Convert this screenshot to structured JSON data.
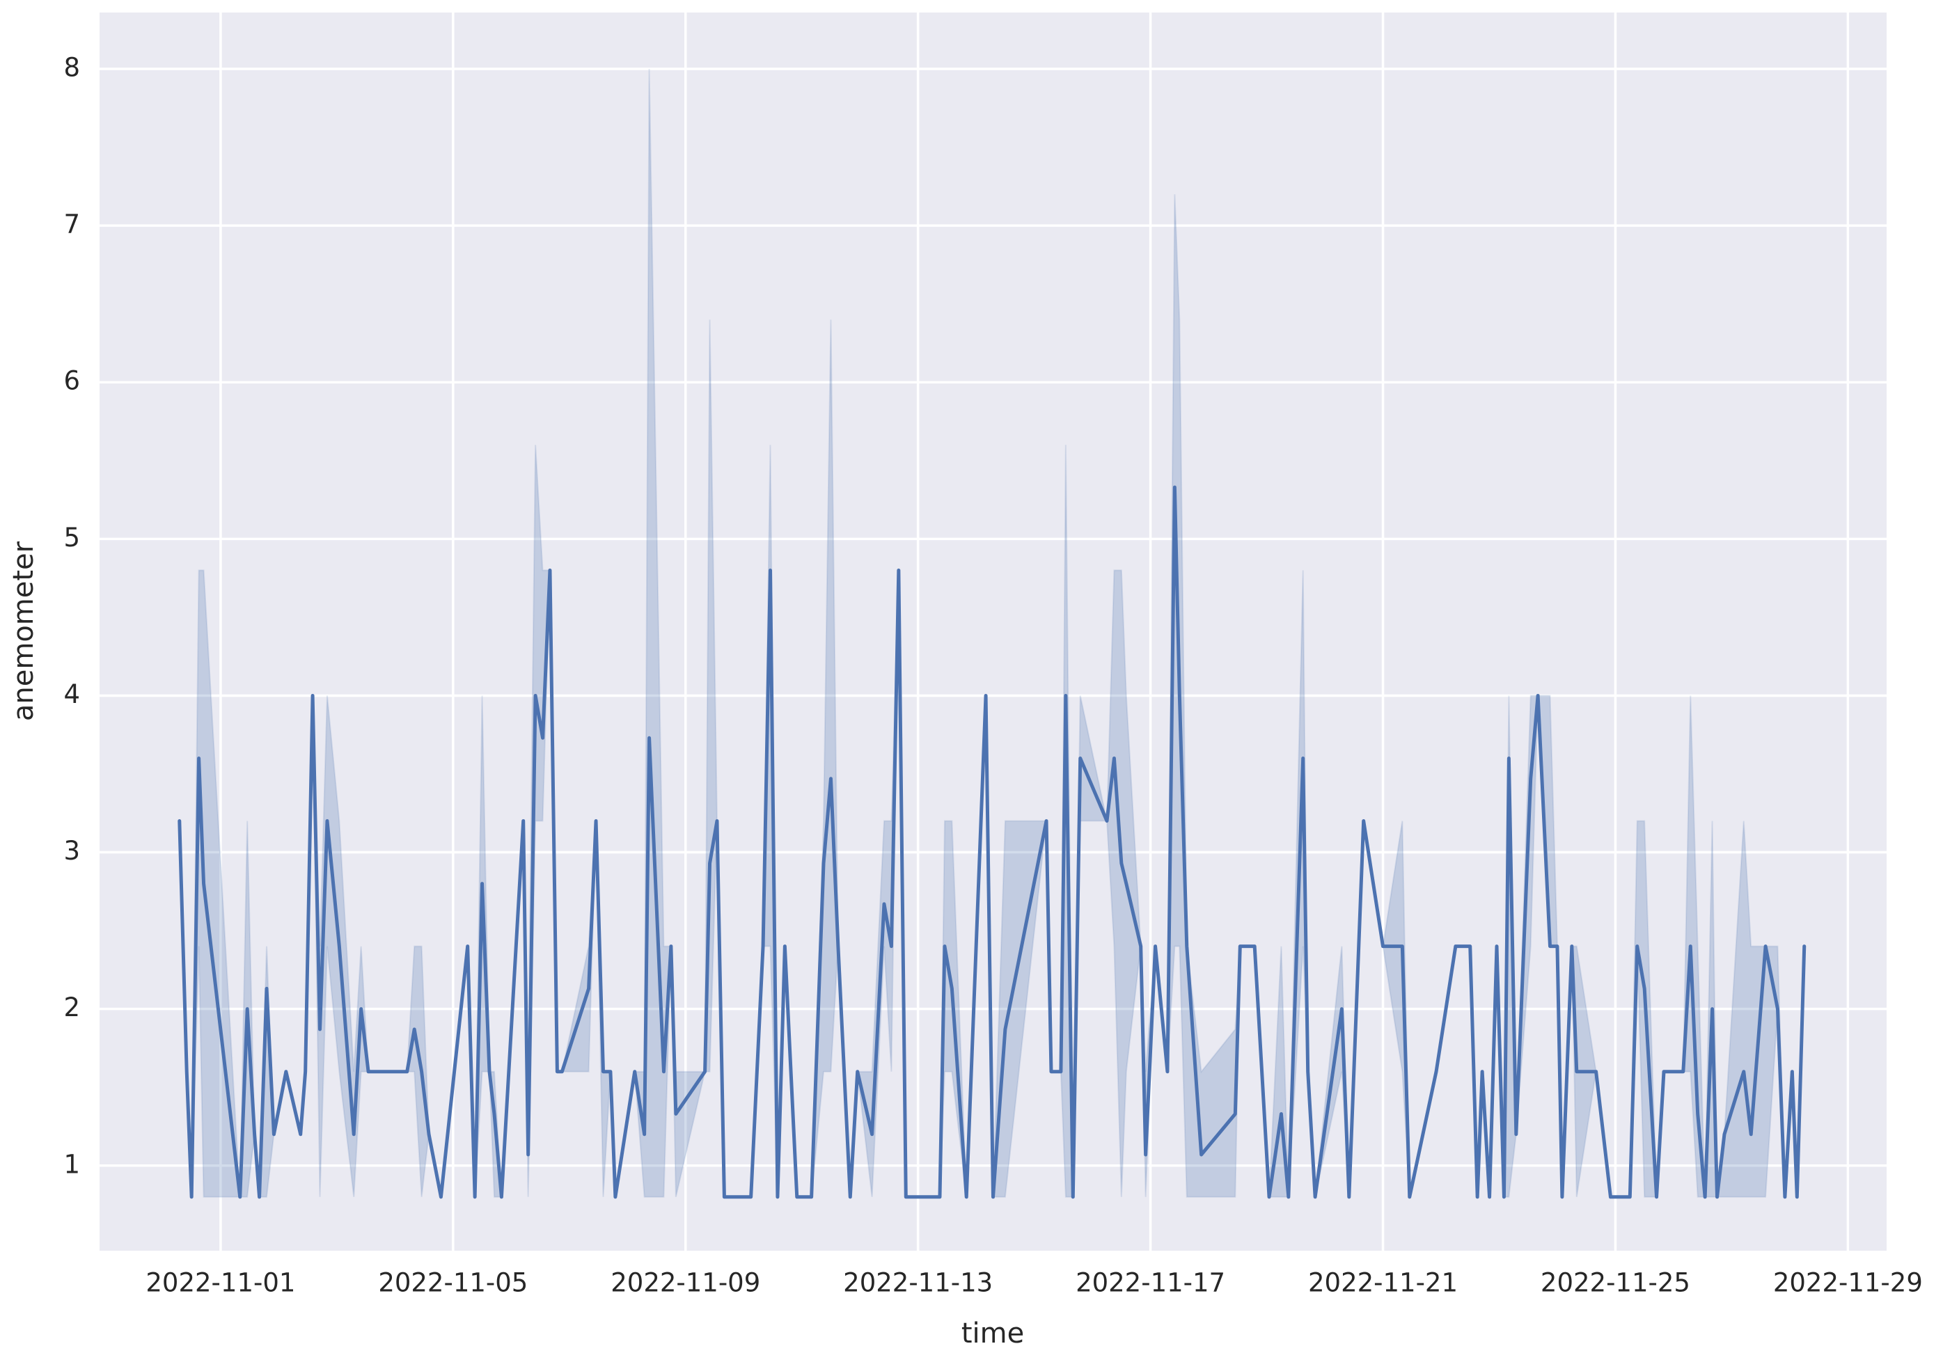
{
  "chart_data": {
    "type": "line",
    "xlabel": "time",
    "ylabel": "anemometer",
    "x": [
      "2022-10-31 07:00",
      "2022-10-31 10:00",
      "2022-10-31 12:00",
      "2022-10-31 15:00",
      "2022-10-31 17:00",
      "2022-11-01 08:00",
      "2022-11-01 11:00",
      "2022-11-01 14:00",
      "2022-11-01 16:00",
      "2022-11-01 19:00",
      "2022-11-01 22:00",
      "2022-11-02 03:00",
      "2022-11-02 09:00",
      "2022-11-02 11:00",
      "2022-11-02 14:00",
      "2022-11-02 17:00",
      "2022-11-02 20:00",
      "2022-11-03 01:00",
      "2022-11-03 07:00",
      "2022-11-03 10:00",
      "2022-11-03 13:00",
      "2022-11-04 05:00",
      "2022-11-04 08:00",
      "2022-11-04 11:00",
      "2022-11-04 14:00",
      "2022-11-04 19:00",
      "2022-11-05 06:00",
      "2022-11-05 09:00",
      "2022-11-05 12:00",
      "2022-11-05 15:00",
      "2022-11-05 17:00",
      "2022-11-05 20:00",
      "2022-11-06 05:00",
      "2022-11-06 07:00",
      "2022-11-06 10:00",
      "2022-11-06 13:00",
      "2022-11-06 16:00",
      "2022-11-06 19:00",
      "2022-11-06 21:00",
      "2022-11-07 08:00",
      "2022-11-07 11:00",
      "2022-11-07 14:00",
      "2022-11-07 17:00",
      "2022-11-07 19:00",
      "2022-11-08 03:00",
      "2022-11-08 07:00",
      "2022-11-08 09:00",
      "2022-11-08 15:00",
      "2022-11-08 18:00",
      "2022-11-08 20:00",
      "2022-11-09 08:00",
      "2022-11-09 10:00",
      "2022-11-09 13:00",
      "2022-11-09 16:00",
      "2022-11-10 03:00",
      "2022-11-10 08:00",
      "2022-11-10 11:00",
      "2022-11-10 14:00",
      "2022-11-10 17:00",
      "2022-11-10 22:00",
      "2022-11-11 04:00",
      "2022-11-11 09:00",
      "2022-11-11 12:00",
      "2022-11-11 15:00",
      "2022-11-11 20:00",
      "2022-11-11 23:00",
      "2022-11-12 05:00",
      "2022-11-12 10:00",
      "2022-11-12 13:00",
      "2022-11-12 16:00",
      "2022-11-12 19:00",
      "2022-11-13 09:00",
      "2022-11-13 11:00",
      "2022-11-13 14:00",
      "2022-11-13 20:00",
      "2022-11-14 04:00",
      "2022-11-14 07:00",
      "2022-11-14 12:00",
      "2022-11-15 05:00",
      "2022-11-15 07:00",
      "2022-11-15 11:00",
      "2022-11-15 13:00",
      "2022-11-15 16:00",
      "2022-11-15 19:00",
      "2022-11-16 06:00",
      "2022-11-16 09:00",
      "2022-11-16 12:00",
      "2022-11-16 14:00",
      "2022-11-16 20:00",
      "2022-11-16 22:00",
      "2022-11-17 02:00",
      "2022-11-17 07:00",
      "2022-11-17 10:00",
      "2022-11-17 12:00",
      "2022-11-17 15:00",
      "2022-11-17 21:00",
      "2022-11-18 11:00",
      "2022-11-18 13:00",
      "2022-11-18 19:00",
      "2022-11-19 01:00",
      "2022-11-19 06:00",
      "2022-11-19 09:00",
      "2022-11-19 15:00",
      "2022-11-19 17:00",
      "2022-11-19 20:00",
      "2022-11-20 07:00",
      "2022-11-20 10:00",
      "2022-11-20 16:00",
      "2022-11-21 00:00",
      "2022-11-21 08:00",
      "2022-11-21 11:00",
      "2022-11-21 22:00",
      "2022-11-22 06:00",
      "2022-11-22 12:00",
      "2022-11-22 15:00",
      "2022-11-22 17:00",
      "2022-11-22 20:00",
      "2022-11-22 23:00",
      "2022-11-23 02:00",
      "2022-11-23 04:00",
      "2022-11-23 07:00",
      "2022-11-23 13:00",
      "2022-11-23 16:00",
      "2022-11-23 21:00",
      "2022-11-24 00:00",
      "2022-11-24 02:00",
      "2022-11-24 06:00",
      "2022-11-24 08:00",
      "2022-11-24 16:00",
      "2022-11-24 22:00",
      "2022-11-25 06:00",
      "2022-11-25 09:00",
      "2022-11-25 12:00",
      "2022-11-25 17:00",
      "2022-11-25 20:00",
      "2022-11-26 04:00",
      "2022-11-26 07:00",
      "2022-11-26 10:00",
      "2022-11-26 13:00",
      "2022-11-26 16:00",
      "2022-11-26 18:00",
      "2022-11-26 21:00",
      "2022-11-27 05:00",
      "2022-11-27 08:00",
      "2022-11-27 14:00",
      "2022-11-27 19:00",
      "2022-11-27 22:00",
      "2022-11-28 01:00",
      "2022-11-28 03:00",
      "2022-11-28 06:00"
    ],
    "series": [
      {
        "color": "#4c72b0",
        "values": [
          3.2,
          1.6,
          0.8,
          3.6,
          2.8,
          0.8,
          2.0,
          1.2,
          0.8,
          2.13,
          1.2,
          1.6,
          1.2,
          1.6,
          4.0,
          1.87,
          3.2,
          2.4,
          1.2,
          2.0,
          1.6,
          1.6,
          1.87,
          1.6,
          1.2,
          0.8,
          2.4,
          0.8,
          2.8,
          1.6,
          1.33,
          0.8,
          3.2,
          1.07,
          4.0,
          3.73,
          4.8,
          1.6,
          1.6,
          2.13,
          3.2,
          1.6,
          1.6,
          0.8,
          1.6,
          1.2,
          3.73,
          1.6,
          2.4,
          1.33,
          1.6,
          2.93,
          3.2,
          0.8,
          0.8,
          2.4,
          4.8,
          0.8,
          2.4,
          0.8,
          0.8,
          2.93,
          3.47,
          2.4,
          0.8,
          1.6,
          1.2,
          2.67,
          2.4,
          4.8,
          0.8,
          0.8,
          2.4,
          2.13,
          0.8,
          4.0,
          0.8,
          1.87,
          3.2,
          1.6,
          1.6,
          4.0,
          0.8,
          3.6,
          3.2,
          3.6,
          2.93,
          2.8,
          2.4,
          1.07,
          2.4,
          1.6,
          5.33,
          4.0,
          2.4,
          1.07,
          1.33,
          2.4,
          2.4,
          0.8,
          1.33,
          0.8,
          3.6,
          1.6,
          0.8,
          2.0,
          0.8,
          3.2,
          2.4,
          2.4,
          0.8,
          1.6,
          2.4,
          2.4,
          0.8,
          1.6,
          0.8,
          2.4,
          0.8,
          3.6,
          1.2,
          3.47,
          4.0,
          2.4,
          2.4,
          0.8,
          2.4,
          1.6,
          1.6,
          0.8,
          0.8,
          2.4,
          2.13,
          0.8,
          1.6,
          1.6,
          2.4,
          1.33,
          0.8,
          2.0,
          0.8,
          1.2,
          1.6,
          1.2,
          2.4,
          2.0,
          0.8,
          1.6,
          0.8,
          2.4
        ],
        "lower": [
          3.2,
          1.6,
          0.8,
          2.4,
          0.8,
          0.8,
          0.8,
          1.2,
          0.8,
          0.8,
          1.2,
          1.6,
          1.2,
          1.6,
          4.0,
          0.8,
          2.4,
          1.6,
          0.8,
          1.6,
          1.6,
          1.6,
          1.6,
          0.8,
          1.2,
          0.8,
          2.4,
          0.8,
          1.6,
          1.6,
          0.8,
          0.8,
          3.2,
          0.8,
          3.2,
          3.2,
          4.8,
          1.6,
          1.6,
          1.6,
          3.2,
          0.8,
          1.6,
          0.8,
          1.6,
          0.8,
          0.8,
          0.8,
          2.4,
          0.8,
          1.6,
          1.6,
          3.2,
          0.8,
          0.8,
          2.4,
          2.4,
          0.8,
          2.4,
          0.8,
          0.8,
          1.6,
          1.6,
          2.4,
          0.8,
          1.6,
          0.8,
          2.4,
          1.6,
          4.8,
          0.8,
          0.8,
          1.6,
          1.6,
          0.8,
          4.0,
          0.8,
          0.8,
          3.2,
          1.6,
          1.6,
          0.8,
          0.8,
          3.2,
          3.2,
          2.4,
          0.8,
          1.6,
          2.4,
          0.8,
          2.4,
          1.6,
          2.4,
          2.4,
          0.8,
          0.8,
          0.8,
          2.4,
          2.4,
          0.8,
          0.8,
          0.8,
          2.4,
          1.6,
          0.8,
          1.6,
          0.8,
          3.2,
          2.4,
          1.6,
          0.8,
          1.6,
          2.4,
          2.4,
          0.8,
          1.6,
          0.8,
          2.4,
          0.8,
          0.8,
          1.2,
          2.4,
          4.0,
          2.4,
          2.4,
          0.8,
          2.4,
          0.8,
          1.6,
          0.8,
          0.8,
          2.4,
          0.8,
          0.8,
          1.6,
          1.6,
          1.6,
          0.8,
          0.8,
          0.8,
          0.8,
          0.8,
          0.8,
          0.8,
          0.8,
          2.0,
          0.8,
          1.6,
          0.8,
          2.4
        ],
        "upper": [
          3.2,
          1.6,
          0.8,
          4.8,
          4.8,
          0.8,
          3.2,
          1.2,
          0.8,
          2.4,
          1.2,
          1.6,
          1.2,
          1.6,
          4.0,
          2.4,
          4.0,
          3.2,
          1.6,
          2.4,
          1.6,
          1.6,
          2.4,
          2.4,
          1.2,
          0.8,
          2.4,
          0.8,
          4.0,
          1.6,
          1.6,
          0.8,
          3.2,
          1.6,
          5.6,
          4.8,
          4.8,
          1.6,
          1.6,
          2.4,
          3.2,
          1.6,
          1.6,
          0.8,
          1.6,
          1.6,
          8.0,
          2.4,
          2.4,
          1.6,
          1.6,
          6.4,
          3.2,
          0.8,
          0.8,
          2.4,
          5.6,
          0.8,
          2.4,
          0.8,
          0.8,
          3.2,
          6.4,
          2.4,
          0.8,
          1.6,
          1.6,
          3.2,
          3.2,
          4.8,
          0.8,
          0.8,
          3.2,
          3.2,
          0.8,
          4.0,
          0.8,
          3.2,
          3.2,
          1.6,
          1.6,
          5.6,
          0.8,
          4.0,
          3.2,
          4.8,
          4.8,
          4.0,
          2.4,
          1.6,
          2.4,
          1.6,
          7.2,
          6.4,
          2.4,
          1.6,
          1.87,
          2.4,
          2.4,
          0.8,
          2.4,
          0.8,
          4.8,
          1.6,
          0.8,
          2.4,
          0.8,
          3.2,
          2.4,
          3.2,
          0.8,
          1.6,
          2.4,
          2.4,
          0.8,
          1.6,
          0.8,
          2.4,
          0.8,
          4.0,
          1.2,
          4.0,
          4.0,
          4.0,
          2.4,
          0.8,
          2.4,
          2.4,
          1.6,
          0.8,
          0.8,
          3.2,
          3.2,
          0.8,
          1.6,
          1.6,
          4.0,
          2.4,
          0.8,
          3.2,
          0.8,
          1.2,
          3.2,
          2.4,
          2.4,
          2.4,
          0.8,
          1.6,
          0.8,
          2.4
        ]
      }
    ],
    "xlim": [
      "2022-10-29 22:00",
      "2022-11-29 16:00"
    ],
    "xticks": [
      "2022-11-01",
      "2022-11-05",
      "2022-11-09",
      "2022-11-13",
      "2022-11-17",
      "2022-11-21",
      "2022-11-25",
      "2022-11-29"
    ],
    "ylim": [
      0.457,
      8.36
    ],
    "yticks": [
      1,
      2,
      3,
      4,
      5,
      6,
      7,
      8
    ],
    "grid": true
  }
}
